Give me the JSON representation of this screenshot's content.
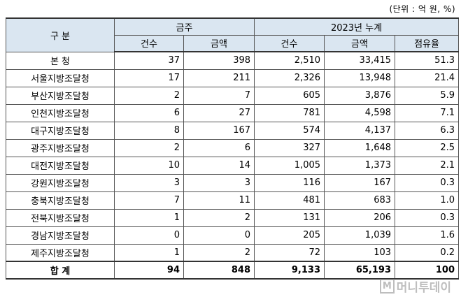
{
  "unit_note": "(단위 : 억 원, %)",
  "headers": {
    "category": "구 분",
    "group_this": "금주",
    "group_cum": "2023년 누계",
    "count": "건수",
    "amount": "금액",
    "share": "점유율"
  },
  "rows": [
    {
      "name": "본    청",
      "c1": "37",
      "a1": "398",
      "c2": "2,510",
      "a2": "33,415",
      "s": "51.3"
    },
    {
      "name": "서울지방조달청",
      "c1": "17",
      "a1": "211",
      "c2": "2,326",
      "a2": "13,948",
      "s": "21.4"
    },
    {
      "name": "부산지방조달청",
      "c1": "2",
      "a1": "7",
      "c2": "605",
      "a2": "3,876",
      "s": "5.9"
    },
    {
      "name": "인천지방조달청",
      "c1": "6",
      "a1": "27",
      "c2": "781",
      "a2": "4,598",
      "s": "7.1"
    },
    {
      "name": "대구지방조달청",
      "c1": "8",
      "a1": "167",
      "c2": "574",
      "a2": "4,137",
      "s": "6.3"
    },
    {
      "name": "광주지방조달청",
      "c1": "2",
      "a1": "6",
      "c2": "327",
      "a2": "1,648",
      "s": "2.5"
    },
    {
      "name": "대전지방조달청",
      "c1": "10",
      "a1": "14",
      "c2": "1,005",
      "a2": "1,373",
      "s": "2.1"
    },
    {
      "name": "강원지방조달청",
      "c1": "3",
      "a1": "3",
      "c2": "116",
      "a2": "167",
      "s": "0.3"
    },
    {
      "name": "충북지방조달청",
      "c1": "7",
      "a1": "11",
      "c2": "481",
      "a2": "683",
      "s": "1.0"
    },
    {
      "name": "전북지방조달청",
      "c1": "1",
      "a1": "2",
      "c2": "131",
      "a2": "206",
      "s": "0.3"
    },
    {
      "name": "경남지방조달청",
      "c1": "0",
      "a1": "0",
      "c2": "205",
      "a2": "1,039",
      "s": "1.6"
    },
    {
      "name": "제주지방조달청",
      "c1": "1",
      "a1": "2",
      "c2": "72",
      "a2": "103",
      "s": "0.2"
    }
  ],
  "total": {
    "name": "합    계",
    "c1": "94",
    "a1": "848",
    "c2": "9,133",
    "a2": "65,193",
    "s": "100"
  },
  "watermark": {
    "logo": "M",
    "text": "머니투데이"
  }
}
